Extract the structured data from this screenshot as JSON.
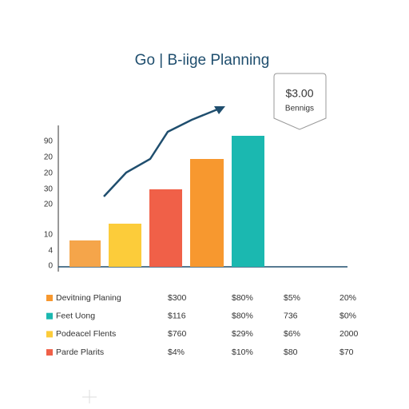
{
  "title": "Go | B-iige Planning",
  "callout": {
    "value": "$3.00",
    "label": "Bennigs"
  },
  "y_axis_labels": [
    "90",
    "20",
    "20",
    "30",
    "20",
    "10",
    "4",
    "0"
  ],
  "table": {
    "rows": [
      [
        "Devitning Planing",
        "$300",
        "$80%",
        "$5%",
        "20%"
      ],
      [
        "Feet Uong",
        "$116",
        "$80%",
        "736",
        "$0%"
      ],
      [
        "Podeacel Flents",
        "$760",
        "$29%",
        "$6%",
        "2000"
      ],
      [
        "Parde Plarits",
        "$4%",
        "$10%",
        "$80",
        "$70"
      ]
    ]
  }
}
